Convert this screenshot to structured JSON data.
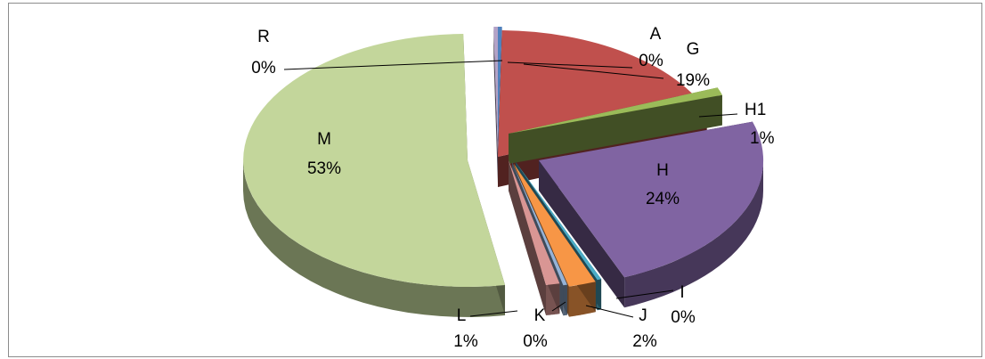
{
  "chart_data": {
    "type": "pie",
    "style": "3d-exploded",
    "legend": "none",
    "slices": [
      {
        "label": "A",
        "percent": "0%",
        "value": 0.3,
        "color": "#4f81bd"
      },
      {
        "label": "G",
        "percent": "19%",
        "value": 19,
        "color": "#c0504d"
      },
      {
        "label": "H1",
        "percent": "1%",
        "value": 1,
        "color": "#9bbb59"
      },
      {
        "label": "H",
        "percent": "24%",
        "value": 24,
        "color": "#8064a2"
      },
      {
        "label": "I",
        "percent": "0%",
        "value": 0.3,
        "color": "#4bacc6"
      },
      {
        "label": "J",
        "percent": "2%",
        "value": 2,
        "color": "#f79646"
      },
      {
        "label": "K",
        "percent": "0%",
        "value": 0.3,
        "color": "#95b3d7"
      },
      {
        "label": "L",
        "percent": "1%",
        "value": 1,
        "color": "#d99694"
      },
      {
        "label": "M",
        "percent": "53%",
        "value": 53,
        "color": "#c3d69b"
      },
      {
        "label": "R",
        "percent": "0%",
        "value": 0.3,
        "color": "#b3a2c7"
      }
    ]
  }
}
